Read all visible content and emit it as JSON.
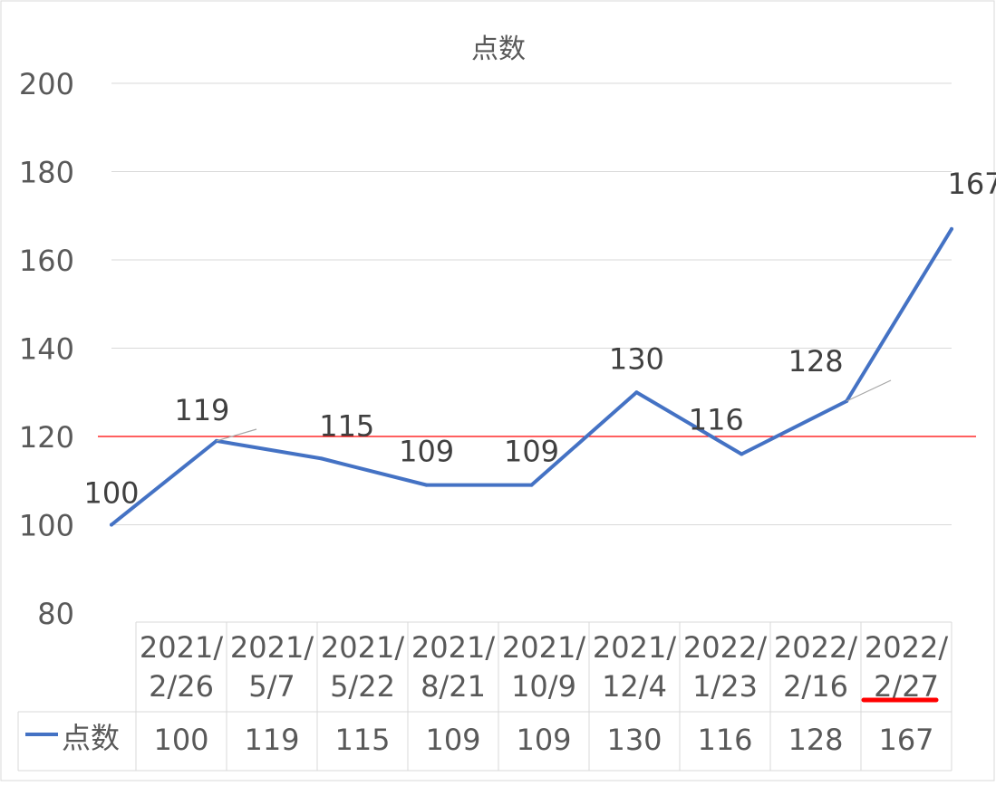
{
  "chart_data": {
    "type": "line",
    "title": "点数",
    "categories": [
      [
        "2021/",
        "2/26"
      ],
      [
        "2021/",
        "5/7"
      ],
      [
        "2021/",
        "5/22"
      ],
      [
        "2021/",
        "8/21"
      ],
      [
        "2021/",
        "10/9"
      ],
      [
        "2021/",
        "12/4"
      ],
      [
        "2022/",
        "1/23"
      ],
      [
        "2022/",
        "2/16"
      ],
      [
        "2022/",
        "2/27"
      ]
    ],
    "series": [
      {
        "name": "点数",
        "values": [
          100,
          119,
          115,
          109,
          109,
          130,
          116,
          128,
          167
        ],
        "color": "#4472C4"
      }
    ],
    "ylim": [
      80,
      200
    ],
    "yticks": [
      80,
      100,
      120,
      140,
      160,
      180,
      200
    ],
    "grid": true,
    "reference_line": {
      "value": 120,
      "color": "#FF0000"
    },
    "highlight_category_index": 8,
    "highlight_color": "#FF0000",
    "data_table": true
  }
}
